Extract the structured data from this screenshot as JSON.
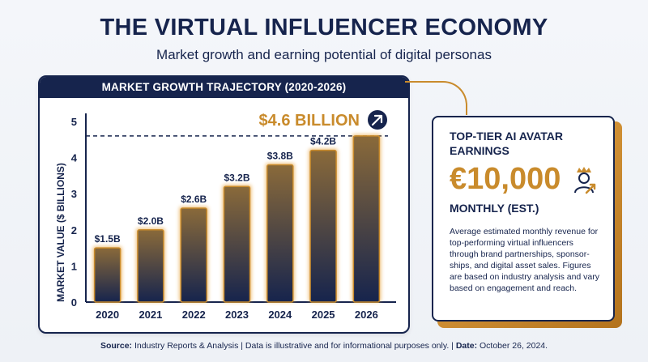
{
  "header": {
    "title": "THE VIRTUAL INFLUENCER ECONOMY",
    "subtitle": "Market growth and earning potential of digital personas"
  },
  "chart_panel": {
    "header": "MARKET GROWTH TRAJECTORY (2020-2026)",
    "callout": "$4.6 BILLION"
  },
  "chart_data": {
    "type": "bar",
    "title": "MARKET GROWTH TRAJECTORY (2020-2026)",
    "categories": [
      "2020",
      "2021",
      "2022",
      "2023",
      "2024",
      "2025",
      "2026"
    ],
    "values": [
      1.5,
      2.0,
      2.6,
      3.2,
      3.8,
      4.2,
      4.6
    ],
    "data_labels": [
      "$1.5B",
      "$2.0B",
      "$2.6B",
      "$3.2B",
      "$3.8B",
      "$4.2B",
      ""
    ],
    "ylabel": "MARKET VALUE ($ BILLIONS)",
    "xlabel": "",
    "ylim": [
      0,
      5
    ],
    "yticks": [
      0,
      1,
      2,
      3,
      4,
      5
    ],
    "reference_line": 4.6,
    "grid": false,
    "colors": {
      "bar_top": "#8a6a3a",
      "bar_bottom": "#16244d",
      "glow": "#e9a94a",
      "navy": "#16244d",
      "gold": "#c98b2c"
    }
  },
  "card": {
    "title": "TOP-TIER AI AVATAR EARNINGS",
    "value": "€10,000",
    "unit": "MONTHLY (EST.)",
    "description": "Average estimated monthly revenue for top-performing virtual influencers through brand partnerships, sponsor-ships, and digital asset sales. Figures are based on industry analysis and vary based on engagement and reach.",
    "icon": "crowned-avatar-growth-icon"
  },
  "footer": {
    "source_label": "Source:",
    "source_text": " Industry Reports & Analysis | Data is illustrative and for informational purposes only. | ",
    "date_label": "Date:",
    "date_text": " October 26, 2024."
  }
}
